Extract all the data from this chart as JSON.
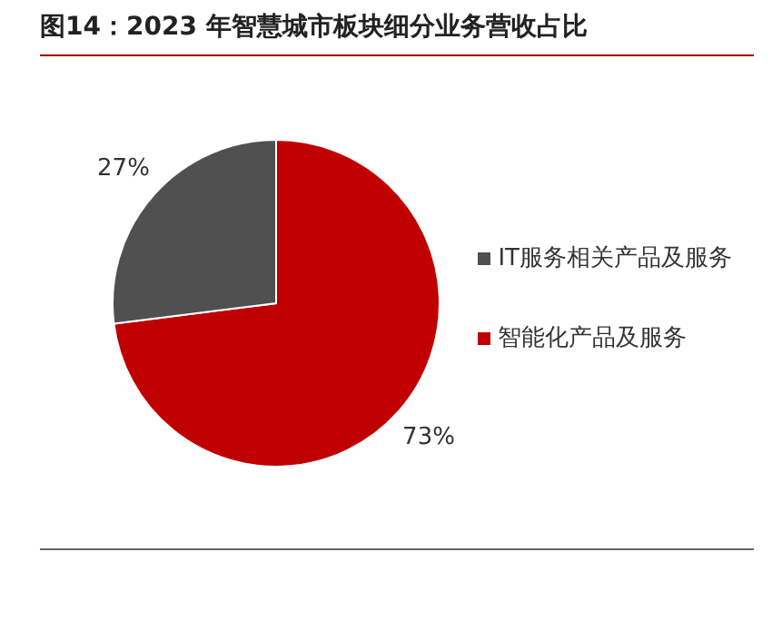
{
  "chart_data": {
    "type": "pie",
    "title": "图14：2023 年智慧城市板块细分业务营收占比",
    "categories": [
      "智能化产品及服务",
      "IT服务相关产品及服务"
    ],
    "values": [
      73,
      27
    ],
    "colors": [
      "#c00000",
      "#505050"
    ],
    "value_labels": [
      "73%",
      "27%"
    ],
    "legend": "right"
  }
}
